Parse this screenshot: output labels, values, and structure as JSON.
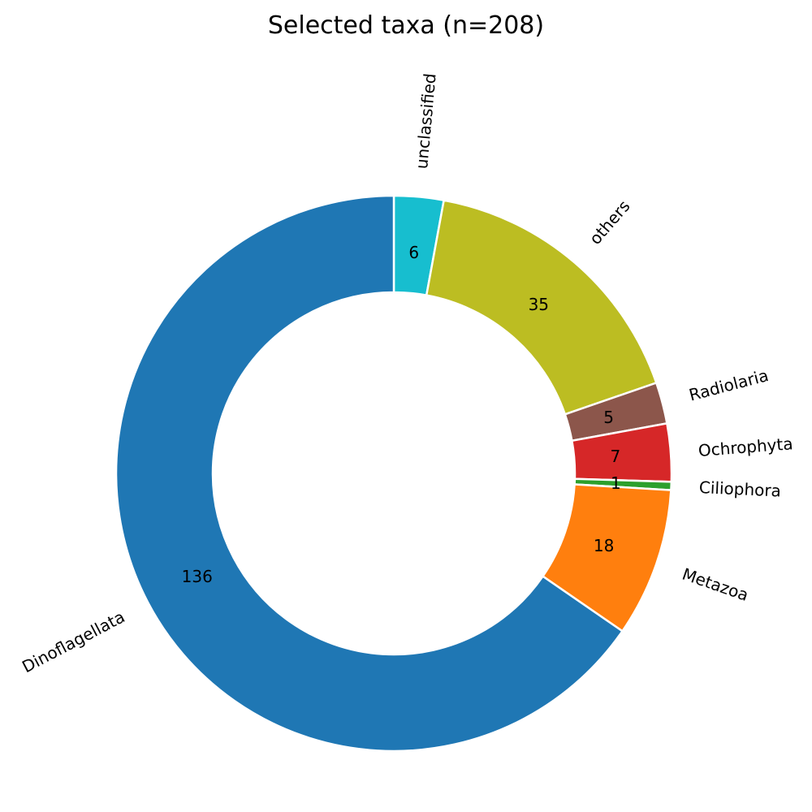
{
  "chart_data": {
    "type": "pie",
    "subtype": "donut",
    "title": "Selected taxa (n=208)",
    "total": 208,
    "start_angle": "top",
    "direction": "clockwise",
    "rotate_labels": true,
    "legend": "none",
    "grid": false,
    "background_color": "#ffffff",
    "text_color": "#000000",
    "wedge_edge_color": "#ffffff",
    "slices": [
      {
        "label": "unclassified",
        "value": 6,
        "color": "#17becf"
      },
      {
        "label": "others",
        "value": 35,
        "color": "#bcbd22"
      },
      {
        "label": "Radiolaria",
        "value": 5,
        "color": "#8c564b"
      },
      {
        "label": "Ochrophyta",
        "value": 7,
        "color": "#d62728"
      },
      {
        "label": "Ciliophora",
        "value": 1,
        "color": "#2ca02c"
      },
      {
        "label": "Metazoa",
        "value": 18,
        "color": "#ff7f0e"
      },
      {
        "label": "Dinoflagellata",
        "value": 136,
        "color": "#1f77b4"
      }
    ]
  }
}
